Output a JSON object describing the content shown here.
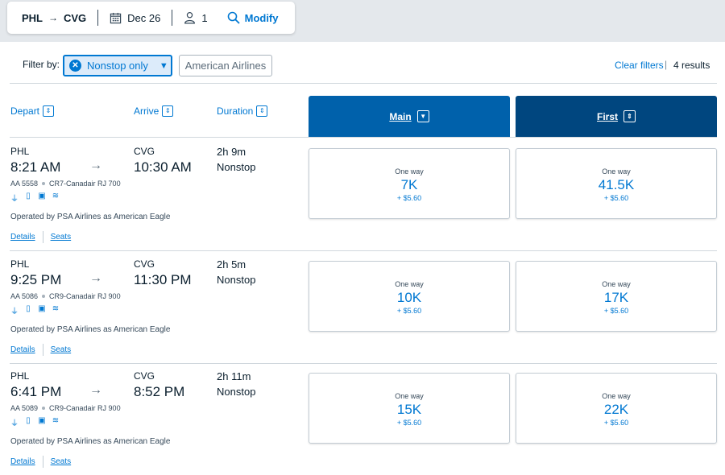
{
  "search": {
    "origin": "PHL",
    "destination": "CVG",
    "date": "Dec 26",
    "passengers": "1",
    "modify_label": "Modify"
  },
  "filters": {
    "label": "Filter by:",
    "active_filter": "Nonstop only",
    "airline_filter": "American Airlines",
    "clear_label": "Clear filters",
    "results": "4 results"
  },
  "columns": {
    "depart": "Depart",
    "arrive": "Arrive",
    "duration": "Duration",
    "main": "Main",
    "first": "First"
  },
  "colors": {
    "accent": "#0078d2",
    "main_cabin": "#0061ab",
    "first_cabin": "#00467f"
  },
  "flights": [
    {
      "dep_code": "PHL",
      "dep_time": "8:21 AM",
      "arr_code": "CVG",
      "arr_time": "10:30 AM",
      "duration": "2h 9m",
      "stops": "Nonstop",
      "flight_no": "AA 5558",
      "aircraft": "CR7-Canadair RJ 700",
      "operated_by": "Operated by PSA Airlines as American Eagle",
      "details_label": "Details",
      "seats_label": "Seats",
      "main": {
        "label": "One way",
        "miles": "7K",
        "tax": "+ $5.60"
      },
      "first": {
        "label": "One way",
        "miles": "41.5K",
        "tax": "+ $5.60"
      }
    },
    {
      "dep_code": "PHL",
      "dep_time": "9:25 PM",
      "arr_code": "CVG",
      "arr_time": "11:30 PM",
      "duration": "2h 5m",
      "stops": "Nonstop",
      "flight_no": "AA 5086",
      "aircraft": "CR9-Canadair RJ 900",
      "operated_by": "Operated by PSA Airlines as American Eagle",
      "details_label": "Details",
      "seats_label": "Seats",
      "main": {
        "label": "One way",
        "miles": "10K",
        "tax": "+ $5.60"
      },
      "first": {
        "label": "One way",
        "miles": "17K",
        "tax": "+ $5.60"
      }
    },
    {
      "dep_code": "PHL",
      "dep_time": "6:41 PM",
      "arr_code": "CVG",
      "arr_time": "8:52 PM",
      "duration": "2h 11m",
      "stops": "Nonstop",
      "flight_no": "AA 5089",
      "aircraft": "CR9-Canadair RJ 900",
      "operated_by": "Operated by PSA Airlines as American Eagle",
      "details_label": "Details",
      "seats_label": "Seats",
      "main": {
        "label": "One way",
        "miles": "15K",
        "tax": "+ $5.60"
      },
      "first": {
        "label": "One way",
        "miles": "22K",
        "tax": "+ $5.60"
      }
    }
  ]
}
